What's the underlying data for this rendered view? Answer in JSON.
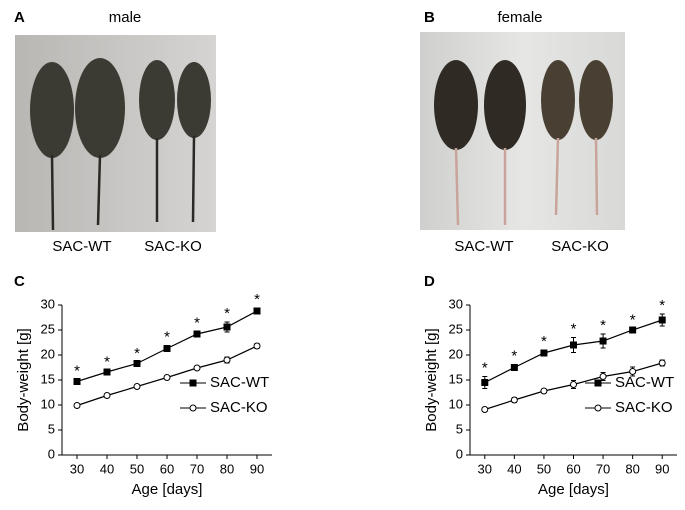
{
  "photo_panels": [
    {
      "label": "A",
      "title": "male",
      "captions": [
        "SAC-WT",
        "SAC-KO"
      ]
    },
    {
      "label": "B",
      "title": "female",
      "captions": [
        "SAC-WT",
        "SAC-KO"
      ]
    }
  ],
  "chart_data": [
    {
      "type": "line",
      "panel_label": "C",
      "xlabel": "Age [days]",
      "ylabel": "Body-weight [g]",
      "x": [
        30,
        40,
        50,
        60,
        70,
        80,
        90
      ],
      "xlim": [
        25,
        95
      ],
      "xticks": [
        30,
        40,
        50,
        60,
        70,
        80,
        90
      ],
      "ylim": [
        0,
        30
      ],
      "yticks": [
        0,
        5,
        10,
        15,
        20,
        25,
        30
      ],
      "legend": "lower right",
      "series": [
        {
          "name": "SAC-WT",
          "color": "#000000",
          "marker": "square",
          "filled": true,
          "values": [
            14.7,
            16.6,
            18.3,
            21.3,
            24.2,
            25.6,
            28.8
          ],
          "errors": [
            0.4,
            0.3,
            0.3,
            0.6,
            0.5,
            1.0,
            0.6
          ],
          "significance": [
            "*",
            "*",
            "*",
            "*",
            "*",
            "*",
            "*"
          ]
        },
        {
          "name": "SAC-KO",
          "color": "#000000",
          "marker": "circle",
          "filled": false,
          "values": [
            9.9,
            11.9,
            13.7,
            15.5,
            17.4,
            19.0,
            21.8
          ],
          "errors": [
            0.3,
            0.3,
            0.3,
            0.3,
            0.4,
            0.6,
            0.5
          ]
        }
      ]
    },
    {
      "type": "line",
      "panel_label": "D",
      "xlabel": "Age [days]",
      "ylabel": "Body-weight [g]",
      "x": [
        30,
        40,
        50,
        60,
        70,
        80,
        90
      ],
      "xlim": [
        25,
        95
      ],
      "xticks": [
        30,
        40,
        50,
        60,
        70,
        80,
        90
      ],
      "ylim": [
        0,
        30
      ],
      "yticks": [
        0,
        5,
        10,
        15,
        20,
        25,
        30
      ],
      "legend": "lower right",
      "series": [
        {
          "name": "SAC-WT",
          "color": "#000000",
          "marker": "square",
          "filled": true,
          "values": [
            14.5,
            17.5,
            20.4,
            22.0,
            22.8,
            25.0,
            27.0
          ],
          "errors": [
            1.2,
            0.6,
            0.6,
            1.5,
            1.4,
            0.3,
            1.2
          ],
          "significance": [
            "*",
            "*",
            "*",
            "*",
            "*",
            "*",
            "*"
          ]
        },
        {
          "name": "SAC-KO",
          "color": "#000000",
          "marker": "circle",
          "filled": false,
          "values": [
            9.1,
            11.0,
            12.8,
            14.1,
            15.7,
            16.7,
            18.4
          ],
          "errors": [
            0.4,
            0.5,
            0.3,
            0.8,
            0.8,
            0.9,
            0.6
          ]
        }
      ]
    }
  ]
}
